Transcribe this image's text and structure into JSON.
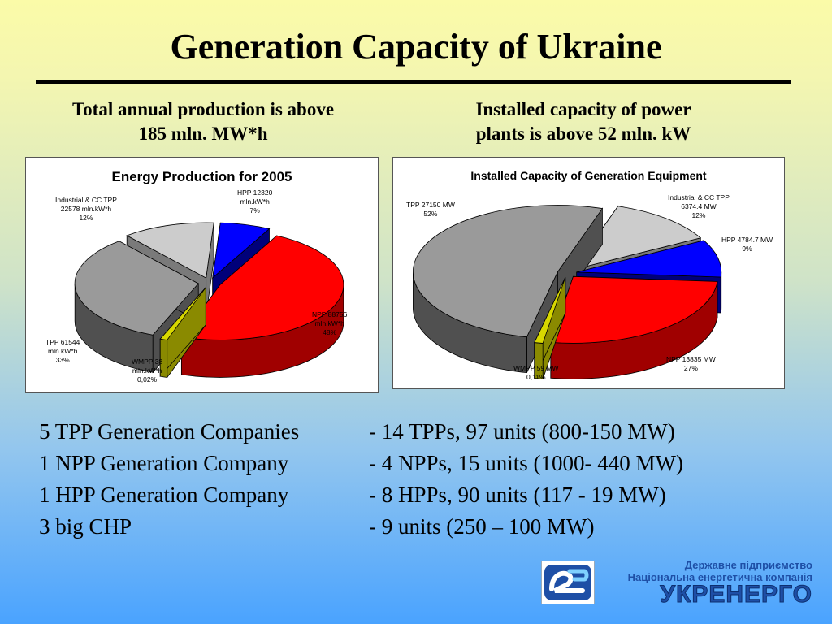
{
  "slide": {
    "title": "Generation Capacity of Ukraine",
    "subtitle_left": [
      "Total annual production is above",
      "185 mln. MW*h"
    ],
    "subtitle_right": [
      "Installed capacity of power",
      "plants is above 52 mln. kW"
    ]
  },
  "chart_data": [
    {
      "type": "pie",
      "title": "Energy Production for 2005",
      "slices": [
        {
          "name": "HPP",
          "value": 12320,
          "unit": "mln.kW*h",
          "percent": 7,
          "color": "#0000ff",
          "side": "#00007a",
          "exploded": true,
          "label": [
            "HPP 12320",
            "mln.kW*h",
            "7%"
          ]
        },
        {
          "name": "NPP",
          "value": 88756,
          "unit": "mln.kW*h",
          "percent": 48,
          "color": "#ff0000",
          "side": "#a00000",
          "exploded": true,
          "label": [
            "NPP 88756",
            "mln.kW*h",
            "48%"
          ]
        },
        {
          "name": "WMPP",
          "value": 38,
          "unit": "mln.kW*h",
          "percent": 0.02,
          "color": "#d8d800",
          "side": "#8a8a00",
          "exploded": true,
          "label": [
            "WMPP 38",
            "mln.kW*h",
            "0,02%"
          ]
        },
        {
          "name": "TPP",
          "value": 61544,
          "unit": "mln.kW*h",
          "percent": 33,
          "color": "#9a9a9a",
          "side": "#505050",
          "exploded": true,
          "label": [
            "TPP 61544",
            "mln.kW*h",
            "33%"
          ]
        },
        {
          "name": "Industrial & CC TPP",
          "value": 22578,
          "unit": "mln.kW*h",
          "percent": 12,
          "color": "#cccccc",
          "side": "#7a7a7a",
          "exploded": true,
          "label": [
            "Industrial & CC TPP",
            "22578 mln.kW*h",
            "12%"
          ]
        }
      ]
    },
    {
      "type": "pie",
      "title": "Installed Capacity of Generation Equipment",
      "slices": [
        {
          "name": "Industrial & CC TPP",
          "value": 6374.4,
          "unit": "MW",
          "percent": 12,
          "color": "#cccccc",
          "side": "#7a7a7a",
          "exploded": true,
          "label": [
            "Industrial & CC TPP",
            "6374.4 MW",
            "12%"
          ]
        },
        {
          "name": "HPP",
          "value": 4784.7,
          "unit": "MW",
          "percent": 9,
          "color": "#0000ff",
          "side": "#00007a",
          "exploded": true,
          "label": [
            "HPP 4784.7 MW",
            "9%"
          ]
        },
        {
          "name": "NPP",
          "value": 13835,
          "unit": "MW",
          "percent": 27,
          "color": "#ff0000",
          "side": "#a00000",
          "exploded": true,
          "label": [
            "NPP 13835 MW",
            "27%"
          ]
        },
        {
          "name": "WMPP",
          "value": 59,
          "unit": "MW",
          "percent": 0.11,
          "color": "#d8d800",
          "side": "#8a8a00",
          "exploded": true,
          "label": [
            "WMPP 59 MW",
            "0,11%"
          ]
        },
        {
          "name": "TPP",
          "value": 27150,
          "unit": "MW",
          "percent": 52,
          "color": "#9a9a9a",
          "side": "#505050",
          "exploded": true,
          "label": [
            "TPP 27150 MW",
            "52%"
          ]
        }
      ]
    }
  ],
  "facts": [
    {
      "left": "5 TPP Generation Companies",
      "right": "- 14 TPPs, 97 units (800-150 MW)"
    },
    {
      "left": "1 NPP Generation Company",
      "right": "- 4 NPPs, 15 units (1000- 440 MW)"
    },
    {
      "left": "1 HPP Generation Company",
      "right": "- 8 HPPs, 90 units (117 - 19 MW)"
    },
    {
      "left": "3 big CHP",
      "right": "- 9 units (250 – 100 MW)"
    }
  ],
  "logo": {
    "line1": "Державне підприємство",
    "line2": "Національна енергетична компанія",
    "word": "УКРЕНЕРГО",
    "color": "#1e4fa6"
  }
}
